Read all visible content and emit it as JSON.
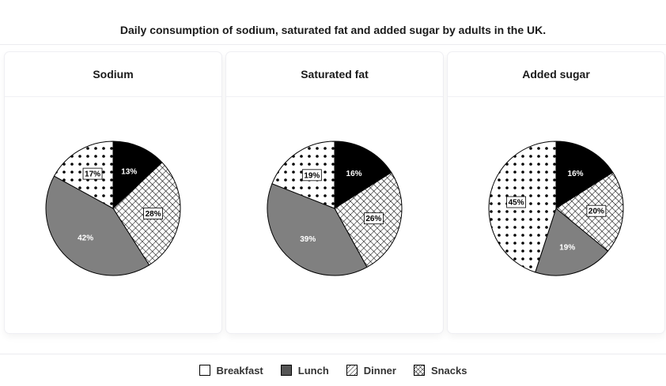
{
  "title": "Daily consumption of sodium, saturated fat and added sugar by adults in the UK.",
  "legend": [
    {
      "label": "Breakfast",
      "pattern": "breakfast"
    },
    {
      "label": "Lunch",
      "pattern": "lunch"
    },
    {
      "label": "Dinner",
      "pattern": "dinner"
    },
    {
      "label": "Snacks",
      "pattern": "snacks"
    }
  ],
  "colors": {
    "lunch": "#000000",
    "dinner": "#808080",
    "outline": "#000000",
    "background": "#ffffff"
  },
  "chart_data": [
    {
      "type": "pie",
      "title": "Sodium",
      "slices": [
        {
          "name": "Lunch",
          "value": 13,
          "label": "13%",
          "pattern": "lunch"
        },
        {
          "name": "Snacks",
          "value": 28,
          "label": "28%",
          "pattern": "snacks"
        },
        {
          "name": "Dinner",
          "value": 42,
          "label": "42%",
          "pattern": "dinner"
        },
        {
          "name": "Breakfast",
          "value": 17,
          "label": "17%",
          "pattern": "breakfast"
        }
      ]
    },
    {
      "type": "pie",
      "title": "Saturated fat",
      "slices": [
        {
          "name": "Lunch",
          "value": 16,
          "label": "16%",
          "pattern": "lunch"
        },
        {
          "name": "Snacks",
          "value": 26,
          "label": "26%",
          "pattern": "snacks"
        },
        {
          "name": "Dinner",
          "value": 39,
          "label": "39%",
          "pattern": "dinner"
        },
        {
          "name": "Breakfast",
          "value": 19,
          "label": "19%",
          "pattern": "breakfast"
        }
      ]
    },
    {
      "type": "pie",
      "title": "Added sugar",
      "slices": [
        {
          "name": "Lunch",
          "value": 16,
          "label": "16%",
          "pattern": "lunch"
        },
        {
          "name": "Snacks",
          "value": 20,
          "label": "20%",
          "pattern": "snacks"
        },
        {
          "name": "Dinner",
          "value": 19,
          "label": "19%",
          "pattern": "dinner"
        },
        {
          "name": "Breakfast",
          "value": 45,
          "label": "45%",
          "pattern": "breakfast"
        }
      ]
    }
  ]
}
